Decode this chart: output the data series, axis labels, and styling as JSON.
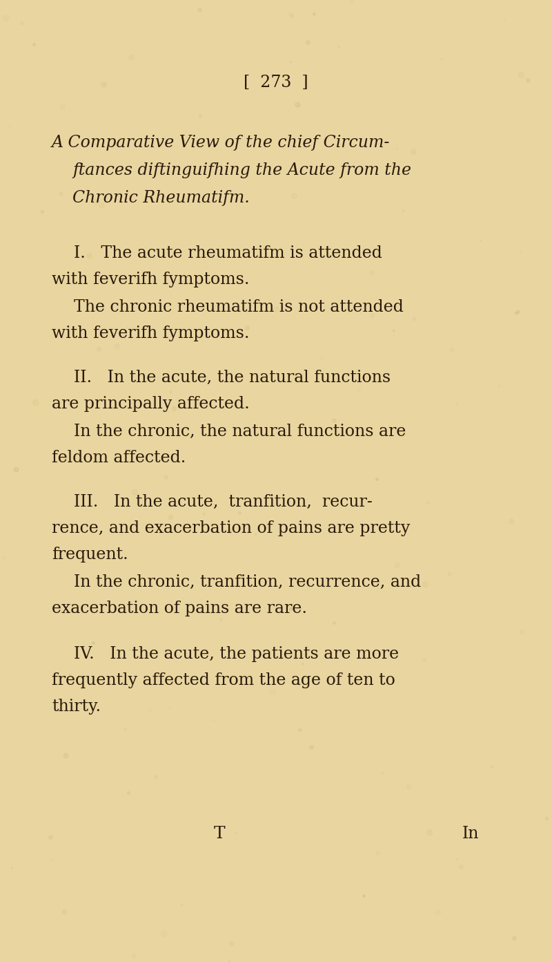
{
  "background_color": "#e8d5a0",
  "text_color": "#2a1a0a",
  "page_number": "[  273  ]",
  "title_lines": [
    "A Comparative View of the chief Circum-",
    "    ftances diftinguifhing the Acute from the",
    "    Chronic Rheumatifm."
  ],
  "footer_T": "T",
  "footer_In": "In",
  "page_num_fontsize": 17,
  "title_fontsize": 17,
  "body_fontsize": 17
}
